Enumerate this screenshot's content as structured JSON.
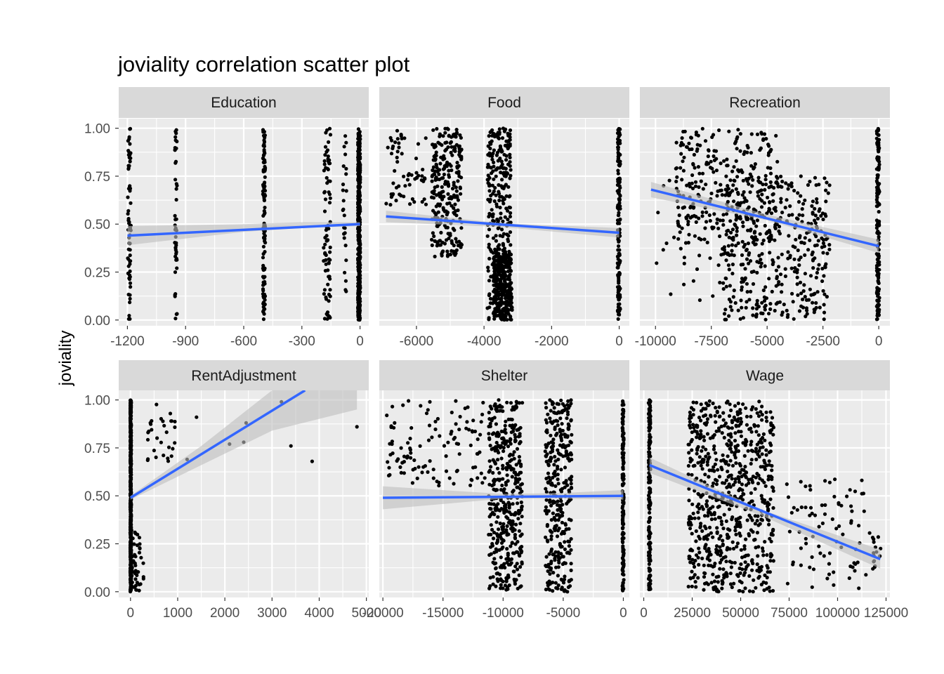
{
  "chart_data": {
    "type": "scatter",
    "title": "joviality correlation scatter plot",
    "ylabel": "joviality",
    "xlabel": "",
    "grid": true,
    "legend": "none",
    "colors": {
      "panel_bg": "#EBEBEB",
      "strip_bg": "#D9D9D9",
      "gridline": "#FFFFFF",
      "point": "#000000",
      "fit_line": "#3366FF",
      "ribbon": "#BEBEBE",
      "tick_text": "#4D4D4D"
    },
    "y_axis": {
      "ylim": [
        -0.03,
        1.05
      ],
      "ticks": [
        0.0,
        0.25,
        0.5,
        0.75,
        1.0
      ],
      "tick_labels": [
        "0.00",
        "0.25",
        "0.50",
        "0.75",
        "1.00"
      ]
    },
    "facets": [
      {
        "name": "Education",
        "xlim": [
          -1245,
          45
        ],
        "x_ticks": [
          -1200,
          -900,
          -600,
          -300,
          0
        ],
        "x_tick_labels": [
          "-1200",
          "-900",
          "-600",
          "-300",
          "0"
        ],
        "fit": {
          "x": [
            -1200,
            0
          ],
          "y": [
            0.44,
            0.5
          ]
        },
        "ribbon": {
          "x": [
            -1200,
            -600,
            -300,
            0
          ],
          "lower": [
            0.39,
            0.46,
            0.48,
            0.49
          ],
          "upper": [
            0.49,
            0.5,
            0.51,
            0.51
          ]
        },
        "point_groups": [
          {
            "x_center": -1190,
            "x_jitter": 8,
            "y_range": [
              0.0,
              1.0
            ],
            "count": 70
          },
          {
            "x_center": -950,
            "x_jitter": 6,
            "y_range": [
              0.0,
              1.0
            ],
            "count": 45
          },
          {
            "x_center": -495,
            "x_jitter": 6,
            "y_range": [
              0.0,
              1.0
            ],
            "count": 110
          },
          {
            "x_center": -170,
            "x_jitter": 18,
            "y_range": [
              0.0,
              1.0
            ],
            "count": 80
          },
          {
            "x_center": -80,
            "x_jitter": 10,
            "y_range": [
              0.1,
              1.0
            ],
            "count": 25
          },
          {
            "x_center": -5,
            "x_jitter": 6,
            "y_range": [
              0.0,
              1.0
            ],
            "count": 400
          }
        ]
      },
      {
        "name": "Food",
        "xlim": [
          -7100,
          300
        ],
        "x_ticks": [
          -6000,
          -4000,
          -2000,
          0
        ],
        "x_tick_labels": [
          "-6000",
          "-4000",
          "-2000",
          "0"
        ],
        "fit": {
          "x": [
            -6900,
            0
          ],
          "y": [
            0.54,
            0.455
          ]
        },
        "ribbon": {
          "x": [
            -6900,
            -3500,
            0
          ],
          "lower": [
            0.51,
            0.485,
            0.43
          ],
          "upper": [
            0.57,
            0.505,
            0.48
          ]
        },
        "point_groups": [
          {
            "x_center": -6300,
            "x_jitter": 600,
            "y_range": [
              0.6,
              1.0
            ],
            "count": 60
          },
          {
            "x_center": -5100,
            "x_jitter": 450,
            "y_range": [
              0.33,
              1.0
            ],
            "count": 260
          },
          {
            "x_center": -3550,
            "x_jitter": 350,
            "y_range": [
              0.0,
              1.0
            ],
            "count": 330
          },
          {
            "x_center": -3450,
            "x_jitter": 280,
            "y_range": [
              0.0,
              0.35
            ],
            "count": 250
          },
          {
            "x_center": -10,
            "x_jitter": 40,
            "y_range": [
              0.0,
              1.0
            ],
            "count": 160
          }
        ]
      },
      {
        "name": "Recreation",
        "xlim": [
          -10700,
          500
        ],
        "x_ticks": [
          -10000,
          -7500,
          -5000,
          -2500,
          0
        ],
        "x_tick_labels": [
          "-10000",
          "-7500",
          "-5000",
          "-2500",
          "0"
        ],
        "fit": {
          "x": [
            -10200,
            0
          ],
          "y": [
            0.68,
            0.385
          ]
        },
        "ribbon": {
          "x": [
            -10200,
            -5000,
            0
          ],
          "lower": [
            0.64,
            0.52,
            0.35
          ],
          "upper": [
            0.72,
            0.55,
            0.42
          ]
        },
        "point_groups": [
          {
            "x_center": -6800,
            "x_jitter": 2300,
            "y_range": [
              0.4,
              1.0
            ],
            "count": 260
          },
          {
            "x_center": -4600,
            "x_jitter": 2400,
            "y_range": [
              0.0,
              0.75
            ],
            "count": 420
          },
          {
            "x_center": -8500,
            "x_jitter": 1500,
            "y_range": [
              0.1,
              0.95
            ],
            "count": 40
          },
          {
            "x_center": -30,
            "x_jitter": 60,
            "y_range": [
              0.0,
              1.0
            ],
            "count": 160
          }
        ]
      },
      {
        "name": "RentAdjustment",
        "xlim": [
          -250,
          5050
        ],
        "x_ticks": [
          0,
          1000,
          2000,
          3000,
          4000,
          5000
        ],
        "x_tick_labels": [
          "0",
          "1000",
          "2000",
          "3000",
          "4000",
          "5000"
        ],
        "fit": {
          "x": [
            0,
            3700
          ],
          "y": [
            0.49,
            1.05
          ]
        },
        "ribbon": {
          "x": [
            0,
            1500,
            3000,
            4800
          ],
          "lower": [
            0.48,
            0.66,
            0.84,
            0.95
          ],
          "upper": [
            0.5,
            0.76,
            1.05,
            1.05
          ]
        },
        "point_groups": [
          {
            "x_center": 5,
            "x_jitter": 10,
            "y_range": [
              0.0,
              1.0
            ],
            "count": 550
          },
          {
            "x_center": 650,
            "x_jitter": 300,
            "y_range": [
              0.65,
              0.98
            ],
            "count": 30
          },
          {
            "x_center": 150,
            "x_jitter": 150,
            "y_range": [
              0.0,
              0.33
            ],
            "count": 45
          }
        ],
        "points": [
          {
            "x": 1200,
            "y": 0.69
          },
          {
            "x": 1400,
            "y": 0.91
          },
          {
            "x": 2100,
            "y": 0.77
          },
          {
            "x": 2400,
            "y": 0.78
          },
          {
            "x": 2450,
            "y": 0.88
          },
          {
            "x": 3200,
            "y": 0.99
          },
          {
            "x": 3400,
            "y": 0.76
          },
          {
            "x": 3850,
            "y": 0.68
          },
          {
            "x": 4800,
            "y": 0.86
          }
        ]
      },
      {
        "name": "Shelter",
        "xlim": [
          -20300,
          500
        ],
        "x_ticks": [
          -20000,
          -15000,
          -10000,
          -5000,
          0
        ],
        "x_tick_labels": [
          "-20000",
          "-15000",
          "-10000",
          "-5000",
          "0"
        ],
        "fit": {
          "x": [
            -20000,
            0
          ],
          "y": [
            0.49,
            0.5
          ]
        },
        "ribbon": {
          "x": [
            -20000,
            -10000,
            -5000,
            0
          ],
          "lower": [
            0.43,
            0.485,
            0.485,
            0.48
          ],
          "upper": [
            0.55,
            0.51,
            0.515,
            0.53
          ]
        },
        "point_groups": [
          {
            "x_center": -15500,
            "x_jitter": 4200,
            "y_range": [
              0.55,
              1.0
            ],
            "count": 110
          },
          {
            "x_center": -9800,
            "x_jitter": 1400,
            "y_range": [
              0.0,
              1.0
            ],
            "count": 420
          },
          {
            "x_center": -5400,
            "x_jitter": 1100,
            "y_range": [
              0.0,
              1.0
            ],
            "count": 330
          },
          {
            "x_center": -20,
            "x_jitter": 60,
            "y_range": [
              0.0,
              1.0
            ],
            "count": 160
          }
        ]
      },
      {
        "name": "Wage",
        "xlim": [
          -2000,
          127000
        ],
        "x_ticks": [
          0,
          25000,
          50000,
          75000,
          100000,
          125000
        ],
        "x_tick_labels": [
          "0",
          "25000",
          "50000",
          "75000",
          "100000",
          "125000"
        ],
        "fit": {
          "x": [
            3000,
            122000
          ],
          "y": [
            0.66,
            0.17
          ]
        },
        "ribbon": {
          "x": [
            3000,
            60000,
            122000
          ],
          "lower": [
            0.62,
            0.4,
            0.12
          ],
          "upper": [
            0.7,
            0.43,
            0.22
          ]
        },
        "point_groups": [
          {
            "x_center": 3000,
            "x_jitter": 500,
            "y_range": [
              0.0,
              1.0
            ],
            "count": 180
          },
          {
            "x_center": 45000,
            "x_jitter": 22000,
            "y_range": [
              0.0,
              1.0
            ],
            "count": 720
          },
          {
            "x_center": 95000,
            "x_jitter": 22000,
            "y_range": [
              0.0,
              0.6
            ],
            "count": 80
          },
          {
            "x_center": 120000,
            "x_jitter": 2500,
            "y_range": [
              0.1,
              0.3
            ],
            "count": 15
          }
        ]
      }
    ]
  }
}
